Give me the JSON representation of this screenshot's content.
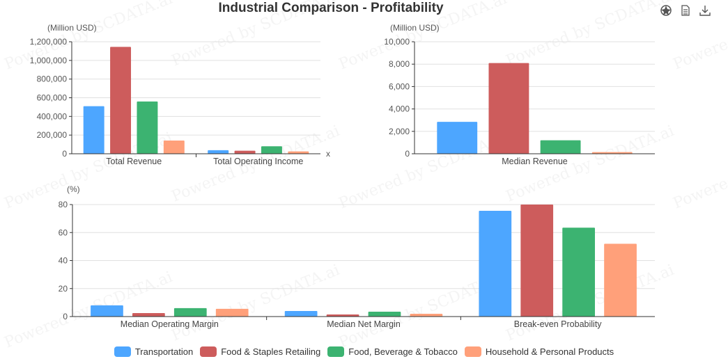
{
  "title": "Industrial Comparison - Profitability",
  "watermark": "Powered by SCDATA.ai",
  "toolbox": {
    "icons": [
      "chart-type-icon",
      "data-view-icon",
      "download-icon"
    ]
  },
  "colors": [
    "#4da6ff",
    "#cd5c5c",
    "#3cb371",
    "#ffa07a"
  ],
  "chart_data": [
    {
      "type": "bar",
      "unit": "(Million USD)",
      "xaxis_name": "x",
      "categories": [
        "Total Revenue",
        "Total Operating Income"
      ],
      "ylim": [
        0,
        1200000
      ],
      "yticks": [
        0,
        200000,
        400000,
        600000,
        800000,
        1000000,
        1200000
      ],
      "ytick_labels": [
        "0",
        "200,000",
        "400,000",
        "600,000",
        "800,000",
        "1,000,000",
        "1,200,000"
      ],
      "series": [
        {
          "name": "Transportation",
          "values": [
            510000,
            38000
          ]
        },
        {
          "name": "Food & Staples Retailing",
          "values": [
            1145000,
            33000
          ]
        },
        {
          "name": "Food, Beverage & Tobacco",
          "values": [
            560000,
            80000
          ]
        },
        {
          "name": "Household & Personal Products",
          "values": [
            142000,
            25000
          ]
        }
      ],
      "grid": true
    },
    {
      "type": "bar",
      "unit": "(Million USD)",
      "categories": [
        "Median Revenue"
      ],
      "ylim": [
        0,
        10000
      ],
      "yticks": [
        0,
        2000,
        4000,
        6000,
        8000,
        10000
      ],
      "ytick_labels": [
        "0",
        "2,000",
        "4,000",
        "6,000",
        "8,000",
        "10,000"
      ],
      "series": [
        {
          "name": "Transportation",
          "values": [
            2850
          ]
        },
        {
          "name": "Food & Staples Retailing",
          "values": [
            8100
          ]
        },
        {
          "name": "Food, Beverage & Tobacco",
          "values": [
            1200
          ]
        },
        {
          "name": "Household & Personal Products",
          "values": [
            150
          ]
        }
      ],
      "grid": true
    },
    {
      "type": "bar",
      "unit": "(%)",
      "categories": [
        "Median Operating Margin",
        "Median Net Margin",
        "Break-even Probability"
      ],
      "ylim": [
        0,
        80
      ],
      "yticks": [
        0,
        20,
        40,
        60,
        80
      ],
      "ytick_labels": [
        "0",
        "20",
        "40",
        "60",
        "80"
      ],
      "series": [
        {
          "name": "Transportation",
          "values": [
            8,
            4,
            75.5
          ]
        },
        {
          "name": "Food & Staples Retailing",
          "values": [
            2.5,
            1.5,
            80
          ]
        },
        {
          "name": "Food, Beverage & Tobacco",
          "values": [
            6,
            3.5,
            63.5
          ]
        },
        {
          "name": "Household & Personal Products",
          "values": [
            5.5,
            2,
            52
          ]
        }
      ],
      "grid": true
    }
  ],
  "legend": {
    "placement": "bottom-center",
    "items": [
      "Transportation",
      "Food & Staples Retailing",
      "Food, Beverage & Tobacco",
      "Household & Personal Products"
    ]
  }
}
